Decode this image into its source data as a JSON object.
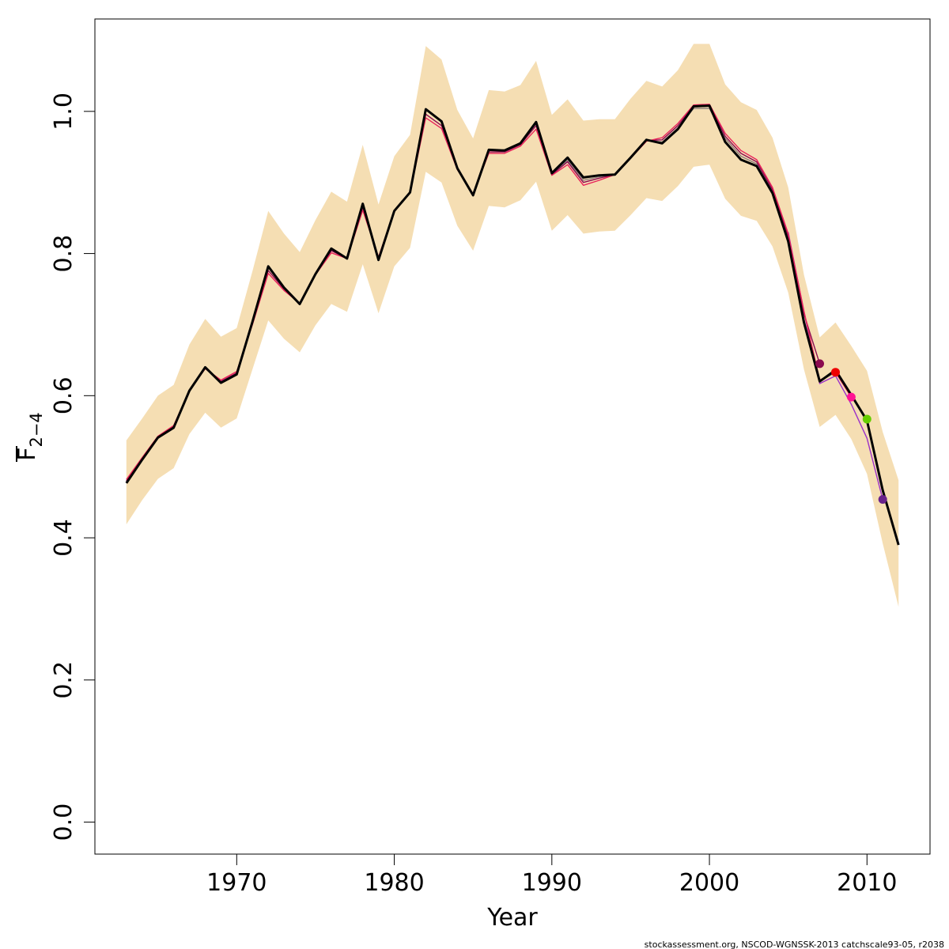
{
  "chart_data": {
    "type": "line",
    "xlabel": "Year",
    "ylabel": "F",
    "ylabel_sub": "2−4",
    "xlim": [
      1961,
      2014
    ],
    "ylim": [
      -0.045,
      1.13
    ],
    "x_ticks": [
      1970,
      1980,
      1990,
      2000,
      2010
    ],
    "x_tick_labels": [
      "1970",
      "1980",
      "1990",
      "2000",
      "2010"
    ],
    "y_ticks": [
      0.0,
      0.2,
      0.4,
      0.6,
      0.8,
      1.0
    ],
    "y_tick_labels": [
      "0.0",
      "0.2",
      "0.4",
      "0.6",
      "0.8",
      "1.0"
    ],
    "grid": false,
    "band": {
      "color": "#f5deb3",
      "x": [
        1963,
        1964,
        1965,
        1966,
        1967,
        1968,
        1969,
        1970,
        1971,
        1972,
        1973,
        1974,
        1975,
        1976,
        1977,
        1978,
        1979,
        1980,
        1981,
        1982,
        1983,
        1984,
        1985,
        1986,
        1987,
        1988,
        1989,
        1990,
        1991,
        1992,
        1993,
        1994,
        1995,
        1996,
        1997,
        1998,
        1999,
        2000,
        2001,
        2002,
        2003,
        2004,
        2005,
        2006,
        2007,
        2008,
        2009,
        2010,
        2011,
        2012
      ],
      "upper": [
        0.537,
        0.568,
        0.6,
        0.615,
        0.672,
        0.708,
        0.683,
        0.695,
        0.775,
        0.86,
        0.828,
        0.802,
        0.847,
        0.887,
        0.873,
        0.953,
        0.869,
        0.937,
        0.967,
        1.092,
        1.073,
        1.002,
        0.962,
        1.03,
        1.028,
        1.037,
        1.071,
        0.995,
        1.017,
        0.987,
        0.989,
        0.989,
        1.018,
        1.043,
        1.035,
        1.058,
        1.095,
        1.095,
        1.038,
        1.013,
        1.002,
        0.963,
        0.893,
        0.77,
        0.682,
        0.703,
        0.67,
        0.635,
        0.549,
        0.481
      ],
      "lower": [
        0.419,
        0.453,
        0.483,
        0.498,
        0.546,
        0.576,
        0.555,
        0.568,
        0.637,
        0.706,
        0.68,
        0.661,
        0.699,
        0.729,
        0.718,
        0.785,
        0.716,
        0.782,
        0.808,
        0.915,
        0.9,
        0.839,
        0.804,
        0.867,
        0.865,
        0.875,
        0.901,
        0.832,
        0.854,
        0.828,
        0.831,
        0.832,
        0.854,
        0.878,
        0.874,
        0.895,
        0.922,
        0.925,
        0.877,
        0.853,
        0.846,
        0.81,
        0.745,
        0.637,
        0.556,
        0.573,
        0.539,
        0.49,
        0.392,
        0.303
      ]
    },
    "series": [
      {
        "color": "#000000",
        "x": [
          1963,
          1964,
          1965,
          1966,
          1967,
          1968,
          1969,
          1970,
          1971,
          1972,
          1973,
          1974,
          1975,
          1976,
          1977,
          1978,
          1979,
          1980,
          1981,
          1982,
          1983,
          1984,
          1985,
          1986,
          1987,
          1988,
          1989,
          1990,
          1991,
          1992,
          1993,
          1994,
          1995,
          1996,
          1997,
          1998,
          1999,
          2000,
          2001,
          2002,
          2003,
          2004,
          2005,
          2006,
          2007,
          2008,
          2009,
          2010,
          2011,
          2012
        ],
        "values": [
          0.477,
          0.51,
          0.541,
          0.555,
          0.607,
          0.64,
          0.618,
          0.63,
          0.704,
          0.782,
          0.752,
          0.729,
          0.771,
          0.807,
          0.793,
          0.87,
          0.791,
          0.86,
          0.886,
          1.003,
          0.986,
          0.92,
          0.882,
          0.946,
          0.945,
          0.955,
          0.985,
          0.913,
          0.935,
          0.907,
          0.91,
          0.911,
          0.935,
          0.96,
          0.955,
          0.975,
          1.007,
          1.008,
          0.957,
          0.932,
          0.923,
          0.885,
          0.817,
          0.703,
          0.62,
          0.636,
          0.601,
          0.565,
          0.467,
          0.39
        ]
      },
      {
        "color": "#e8235a",
        "x": [
          1963,
          1964,
          1965,
          1966,
          1967,
          1968,
          1969,
          1970,
          1971,
          1972,
          1973,
          1974,
          1975,
          1976,
          1977,
          1978,
          1979,
          1980,
          1981,
          1982,
          1983,
          1984,
          1985,
          1986,
          1987,
          1988,
          1989,
          1990,
          1991,
          1992,
          1993,
          1994,
          1995,
          1996,
          1997,
          1998,
          1999,
          2000,
          2001,
          2002,
          2003,
          2004,
          2005,
          2006,
          2007,
          2008,
          2009
        ],
        "values": [
          0.482,
          0.513,
          0.543,
          0.558,
          0.607,
          0.638,
          0.622,
          0.634,
          0.7,
          0.772,
          0.748,
          0.73,
          0.77,
          0.801,
          0.793,
          0.861,
          0.795,
          0.86,
          0.886,
          0.991,
          0.976,
          0.918,
          0.884,
          0.941,
          0.941,
          0.951,
          0.975,
          0.91,
          0.925,
          0.896,
          0.903,
          0.911,
          0.934,
          0.958,
          0.963,
          0.983,
          1.009,
          1.01,
          0.969,
          0.945,
          0.932,
          0.893,
          0.828,
          0.719,
          0.622,
          0.633,
          0.598
        ]
      },
      {
        "color": "#8b0a50",
        "x": [
          1963,
          1964,
          1965,
          1966,
          1967,
          1968,
          1969,
          1970,
          1971,
          1972,
          1973,
          1974,
          1975,
          1976,
          1977,
          1978,
          1979,
          1980,
          1981,
          1982,
          1983,
          1984,
          1985,
          1986,
          1987,
          1988,
          1989,
          1990,
          1991,
          1992,
          1993,
          1994,
          1995,
          1996,
          1997,
          1998,
          1999,
          2000,
          2001,
          2002,
          2003,
          2004,
          2005,
          2006,
          2007
        ],
        "values": [
          0.48,
          0.512,
          0.542,
          0.557,
          0.607,
          0.639,
          0.62,
          0.632,
          0.702,
          0.776,
          0.75,
          0.729,
          0.77,
          0.804,
          0.793,
          0.865,
          0.793,
          0.86,
          0.886,
          0.996,
          0.98,
          0.919,
          0.883,
          0.943,
          0.943,
          0.953,
          0.98,
          0.911,
          0.929,
          0.9,
          0.906,
          0.911,
          0.934,
          0.959,
          0.96,
          0.98,
          1.008,
          1.009,
          0.965,
          0.941,
          0.929,
          0.89,
          0.825,
          0.715,
          0.645
        ]
      },
      {
        "color": "#8b7d7b",
        "x": [
          1988,
          1989,
          1990,
          1991,
          1992,
          1993,
          1994,
          1995,
          1996,
          1997,
          1998,
          1999,
          2000,
          2001,
          2002,
          2003,
          2004,
          2005,
          2006,
          2007,
          2008
        ],
        "values": [
          0.954,
          0.983,
          0.912,
          0.931,
          0.903,
          0.908,
          0.911,
          0.935,
          0.959,
          0.957,
          0.977,
          1.004,
          1.004,
          0.962,
          0.937,
          0.926,
          0.888,
          0.821,
          0.708,
          0.62,
          0.633
        ]
      },
      {
        "color": "#9b30c8",
        "x": [
          2005,
          2006,
          2007,
          2008,
          2009,
          2010,
          2011
        ],
        "values": [
          0.83,
          0.718,
          0.617,
          0.628,
          0.588,
          0.54,
          0.454
        ]
      }
    ],
    "points": [
      {
        "x": 2007,
        "y": 0.645,
        "color": "#8b0a50"
      },
      {
        "x": 2008,
        "y": 0.633,
        "color": "#ee0000"
      },
      {
        "x": 2009,
        "y": 0.598,
        "color": "#ff1493"
      },
      {
        "x": 2010,
        "y": 0.567,
        "color": "#66cd00"
      },
      {
        "x": 2011,
        "y": 0.454,
        "color": "#68228b"
      }
    ]
  },
  "footer": "stockassessment.org, NSCOD-WGNSSK-2013 catchscale93-05, r2038"
}
